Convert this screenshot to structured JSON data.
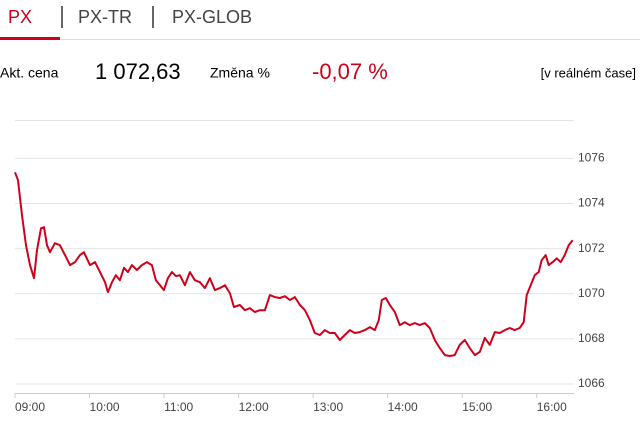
{
  "tabs": [
    "PX",
    "PX-TR",
    "PX-GLOB"
  ],
  "info": {
    "price_label": "Akt. cena",
    "price": "1 072,63",
    "change_label": "Změna %",
    "change": "-0,07 %",
    "mode": "[v reálném čase]"
  },
  "chart_data": {
    "type": "line",
    "color": "#d0021b",
    "x": [
      9.0,
      9.04,
      9.094,
      9.148,
      9.201,
      9.255,
      9.295,
      9.349,
      9.389,
      9.429,
      9.469,
      9.536,
      9.603,
      9.671,
      9.738,
      9.805,
      9.872,
      9.925,
      10.006,
      10.073,
      10.14,
      10.207,
      10.247,
      10.301,
      10.354,
      10.408,
      10.462,
      10.515,
      10.569,
      10.636,
      10.703,
      10.77,
      10.837,
      10.891,
      10.945,
      10.998,
      11.052,
      11.105,
      11.159,
      11.213,
      11.28,
      11.347,
      11.414,
      11.481,
      11.548,
      11.615,
      11.682,
      11.749,
      11.816,
      11.883,
      11.937,
      12.017,
      12.084,
      12.151,
      12.218,
      12.285,
      12.353,
      12.42,
      12.487,
      12.554,
      12.621,
      12.688,
      12.755,
      12.822,
      12.889,
      12.956,
      13.023,
      13.09,
      13.157,
      13.224,
      13.291,
      13.358,
      13.425,
      13.492,
      13.559,
      13.626,
      13.694,
      13.761,
      13.828,
      13.881,
      13.921,
      13.975,
      14.029,
      14.096,
      14.163,
      14.23,
      14.297,
      14.364,
      14.431,
      14.498,
      14.565,
      14.632,
      14.699,
      14.766,
      14.833,
      14.9,
      14.967,
      15.035,
      15.102,
      15.169,
      15.236,
      15.303,
      15.37,
      15.437,
      15.504,
      15.571,
      15.638,
      15.705,
      15.772,
      15.825,
      15.865,
      15.919,
      15.973,
      16.026,
      16.066,
      16.12,
      16.16,
      16.214,
      16.268,
      16.321,
      16.375,
      16.429,
      16.482
    ],
    "values": [
      1075.38,
      1075.03,
      1073.48,
      1072.15,
      1071.27,
      1070.69,
      1071.93,
      1072.9,
      1072.95,
      1072.15,
      1071.84,
      1072.24,
      1072.15,
      1071.71,
      1071.27,
      1071.4,
      1071.71,
      1071.84,
      1071.27,
      1071.4,
      1070.96,
      1070.51,
      1070.07,
      1070.51,
      1070.82,
      1070.6,
      1071.15,
      1070.96,
      1071.27,
      1071.05,
      1071.27,
      1071.4,
      1071.27,
      1070.6,
      1070.38,
      1070.16,
      1070.69,
      1070.96,
      1070.78,
      1070.82,
      1070.38,
      1070.96,
      1070.6,
      1070.51,
      1070.25,
      1070.69,
      1070.16,
      1070.25,
      1070.38,
      1070.03,
      1069.41,
      1069.5,
      1069.27,
      1069.36,
      1069.19,
      1069.27,
      1069.27,
      1069.94,
      1069.85,
      1069.81,
      1069.89,
      1069.72,
      1069.85,
      1069.5,
      1069.27,
      1068.83,
      1068.26,
      1068.17,
      1068.39,
      1068.26,
      1068.26,
      1067.95,
      1068.17,
      1068.39,
      1068.26,
      1068.3,
      1068.39,
      1068.52,
      1068.39,
      1068.83,
      1069.72,
      1069.81,
      1069.5,
      1069.19,
      1068.61,
      1068.74,
      1068.61,
      1068.7,
      1068.61,
      1068.7,
      1068.48,
      1067.95,
      1067.59,
      1067.28,
      1067.24,
      1067.28,
      1067.73,
      1067.95,
      1067.59,
      1067.28,
      1067.42,
      1068.04,
      1067.73,
      1068.3,
      1068.26,
      1068.39,
      1068.48,
      1068.39,
      1068.48,
      1068.74,
      1069.94,
      1070.38,
      1070.82,
      1070.96,
      1071.49,
      1071.71,
      1071.27,
      1071.4,
      1071.57,
      1071.4,
      1071.71,
      1072.15,
      1072.37
    ],
    "xlim": [
      9,
      16.5
    ],
    "xticks": [
      {
        "value": 9,
        "label": "09:00"
      },
      {
        "value": 10,
        "label": "10:00"
      },
      {
        "value": 11,
        "label": "11:00"
      },
      {
        "value": 12,
        "label": "12:00"
      },
      {
        "value": 13,
        "label": "13:00"
      },
      {
        "value": 14,
        "label": "14:00"
      },
      {
        "value": 15,
        "label": "15:00"
      },
      {
        "value": 16,
        "label": "16:00"
      }
    ],
    "ylim": [
      1065.6,
      1077.7
    ],
    "yticks": [
      1066,
      1068,
      1070,
      1072,
      1074,
      1076
    ],
    "grid": true
  }
}
